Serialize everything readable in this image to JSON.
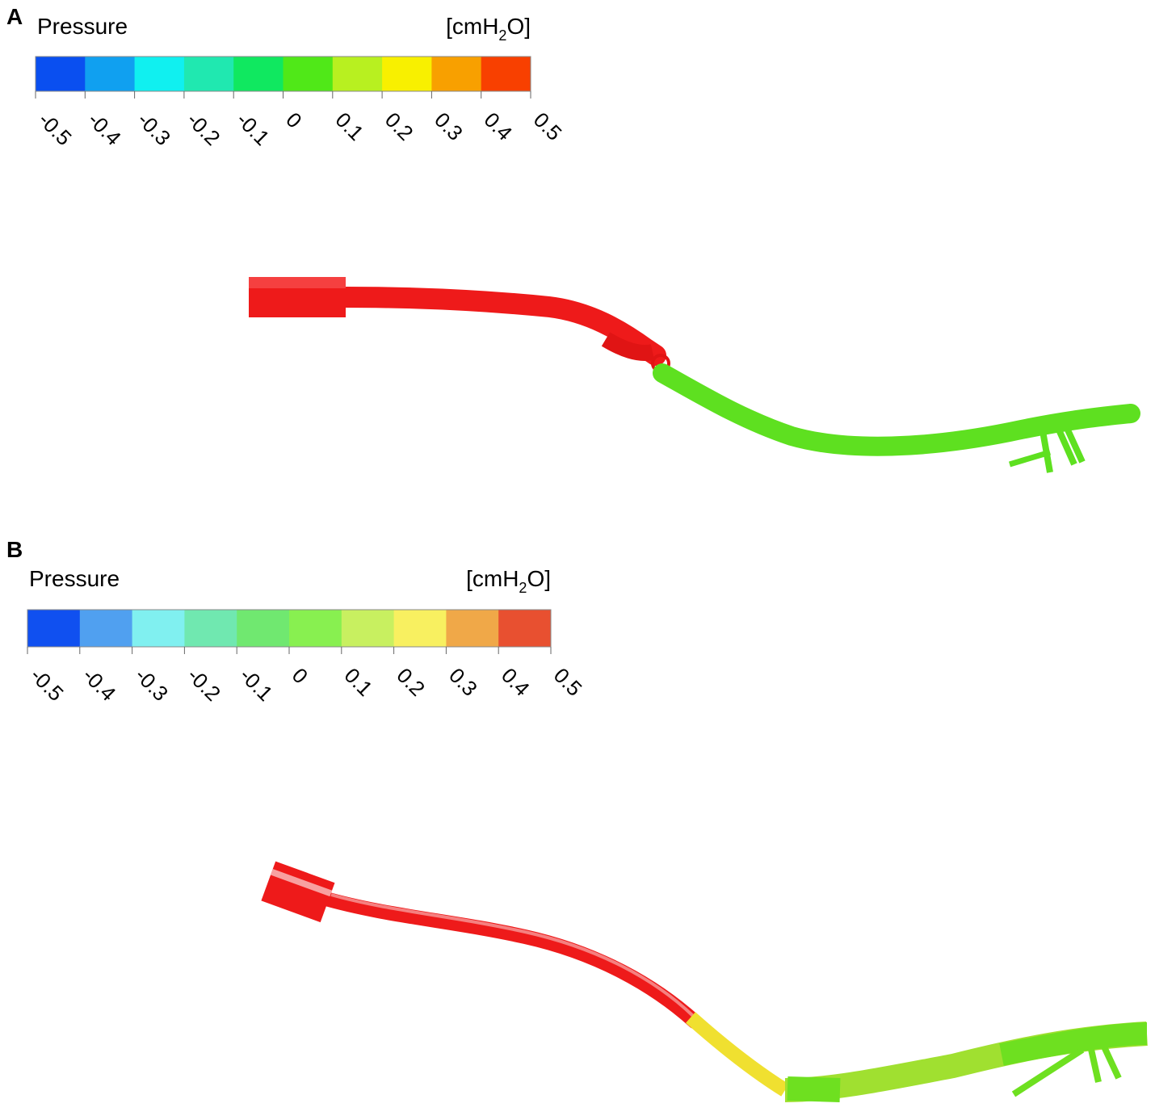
{
  "panels": [
    {
      "label": "A",
      "title": "Pressure",
      "unit": {
        "before": "[cmH",
        "sub": "2",
        "after": "O]"
      },
      "colors": [
        "#0a4ff0",
        "#10a0f0",
        "#10f0f0",
        "#20e8b0",
        "#10e860",
        "#50e818",
        "#b8f020",
        "#f8f000",
        "#f8a000",
        "#f84000"
      ],
      "ticks": [
        "-0.5",
        "-0.4",
        "-0.3",
        "-0.2",
        "-0.1",
        "0",
        "0.1",
        "0.2",
        "0.3",
        "0.4",
        "0.5"
      ]
    },
    {
      "label": "B",
      "title": "Pressure",
      "unit": {
        "before": "[cmH",
        "sub": "2",
        "after": "O]"
      },
      "colors": [
        "#1050f0",
        "#50a0f0",
        "#80f0f0",
        "#70e8b0",
        "#70e870",
        "#88f050",
        "#c8f060",
        "#f8f060",
        "#f0a848",
        "#e85030"
      ],
      "ticks": [
        "-0.5",
        "-0.4",
        "-0.3",
        "-0.2",
        "-0.1",
        "0",
        "0.1",
        "0.2",
        "0.3",
        "0.4",
        "0.5"
      ]
    }
  ]
}
